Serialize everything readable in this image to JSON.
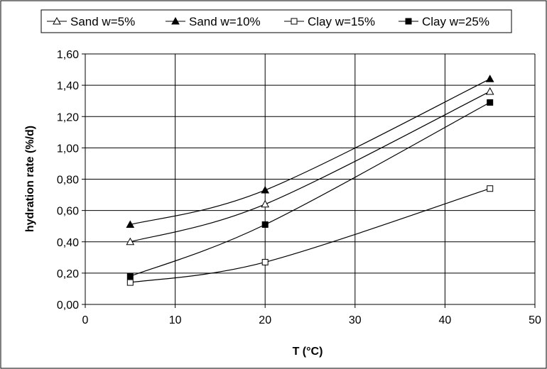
{
  "chart_data": {
    "type": "line",
    "xlabel": "T (°C)",
    "ylabel": "hydration rate (%/d)",
    "xlim": [
      0,
      50
    ],
    "ylim": [
      0,
      1.6
    ],
    "xticks": [
      "0",
      "10",
      "20",
      "30",
      "40",
      "50"
    ],
    "yticks": [
      "0,00",
      "0,20",
      "0,40",
      "0,60",
      "0,80",
      "1,00",
      "1,20",
      "1,40",
      "1,60"
    ],
    "grid": "vertical and horizontal",
    "legend_position": "top",
    "series": [
      {
        "name": "Sand w=5%",
        "marker": "open-triangle",
        "x": [
          5,
          20,
          45
        ],
        "y": [
          0.4,
          0.64,
          1.36
        ]
      },
      {
        "name": "Sand w=10%",
        "marker": "filled-triangle",
        "x": [
          5,
          20,
          45
        ],
        "y": [
          0.51,
          0.73,
          1.44
        ]
      },
      {
        "name": "Clay w=15%",
        "marker": "open-square",
        "x": [
          5,
          20,
          45
        ],
        "y": [
          0.14,
          0.27,
          0.74
        ]
      },
      {
        "name": "Clay w=25%",
        "marker": "filled-square",
        "x": [
          5,
          20,
          45
        ],
        "y": [
          0.18,
          0.51,
          1.29
        ]
      }
    ]
  }
}
